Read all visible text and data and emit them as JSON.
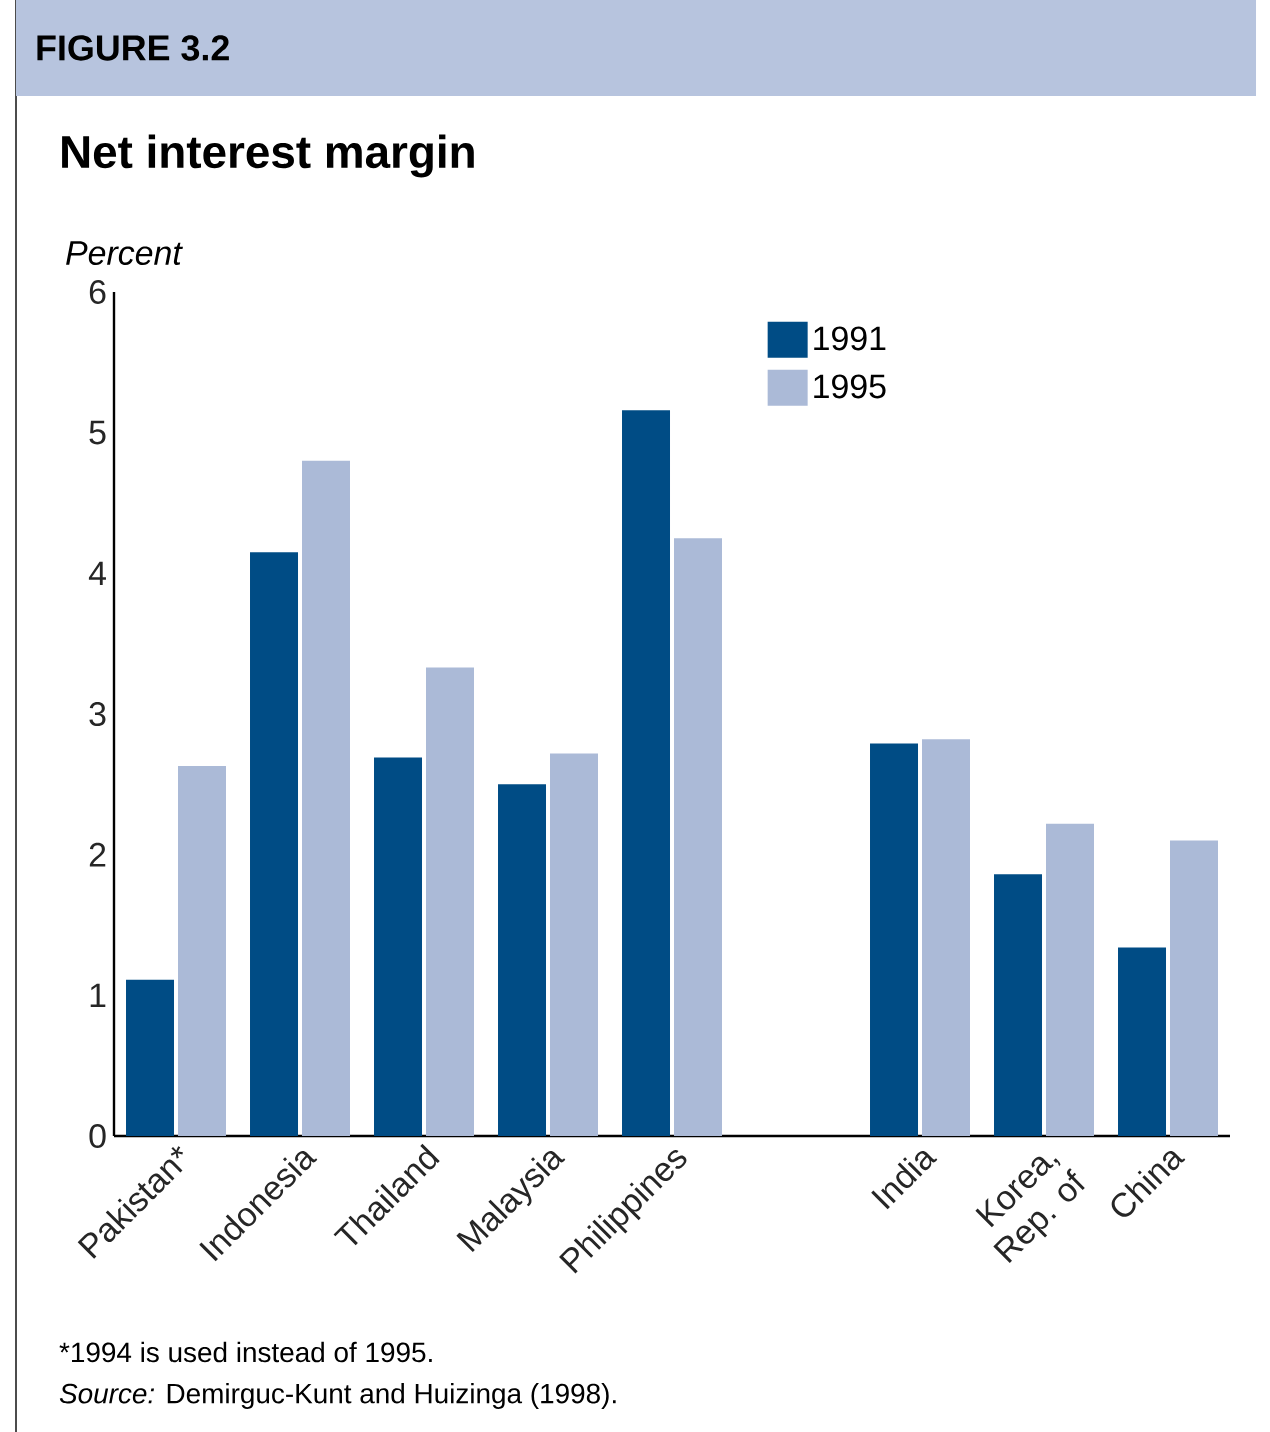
{
  "chart_data": {
    "type": "bar",
    "title": "Net interest margin",
    "ylabel": "Percent",
    "categories": [
      "Pakistan*",
      "Indonesia",
      "Thailand",
      "Malaysia",
      "Philippines",
      null,
      "India",
      "Korea, Rep. of",
      "China"
    ],
    "series": [
      {
        "name": "1991",
        "color": "#004c85",
        "values": [
          1.11,
          4.15,
          2.69,
          2.5,
          5.16,
          null,
          2.79,
          1.86,
          1.34
        ]
      },
      {
        "name": "1995",
        "color": "#abbad7",
        "values": [
          2.63,
          4.8,
          3.33,
          2.72,
          4.25,
          null,
          2.82,
          2.22,
          2.1
        ]
      }
    ],
    "ylim": [
      0,
      6
    ],
    "yticks": [
      0,
      1,
      2,
      3,
      4,
      5,
      6
    ],
    "grid": false,
    "legend": "top right",
    "annotations": [
      "FIGURE 3.2",
      "*1994 is used instead of 1995.",
      "*Source:* Demirguc-Kunt and Huizinga (1998)."
    ]
  }
}
